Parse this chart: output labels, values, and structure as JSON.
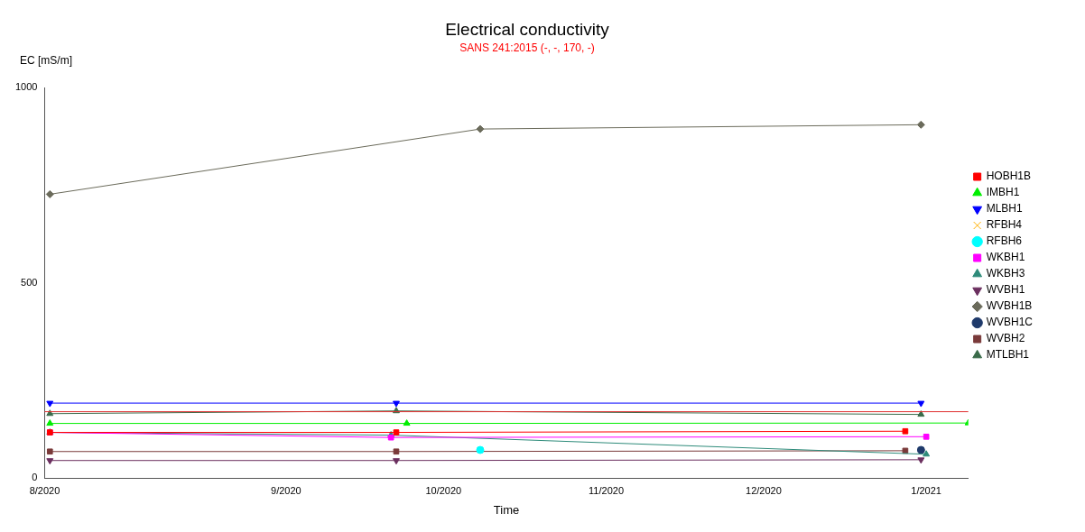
{
  "chart_data": {
    "type": "line",
    "title": "Electrical conductivity",
    "subtitle": "SANS 241:2015 (-, -, 170, -)",
    "xlabel": "Time",
    "ylabel": "EC [mS/m]",
    "xlim": [
      "2020-07-17",
      "2021-01-09"
    ],
    "xticks": [
      {
        "value": "2020-07-17",
        "label": "8/2020"
      },
      {
        "value": "2020-09-01",
        "label": "9/2020"
      },
      {
        "value": "2020-10-01",
        "label": "10/2020"
      },
      {
        "value": "2020-11-01",
        "label": "11/2020"
      },
      {
        "value": "2020-12-01",
        "label": "12/2020"
      },
      {
        "value": "2021-01-01",
        "label": "1/2021"
      }
    ],
    "ylim": [
      0,
      1000
    ],
    "yticks": [
      0,
      500,
      1000
    ],
    "grid": false,
    "legend": "right",
    "line_style": "solid",
    "ref_lines": [
      {
        "axis": "y",
        "value": 170,
        "color": "#e03030"
      }
    ],
    "series": [
      {
        "name": "HOBH1B",
        "color": "#ff0000",
        "marker": "square",
        "x": [
          "2020-07-18",
          "2020-09-22",
          "2020-12-28"
        ],
        "values": [
          117,
          117,
          120
        ]
      },
      {
        "name": "IMBH1",
        "color": "#00ee00",
        "marker": "triangle",
        "x": [
          "2020-07-18",
          "2020-09-24",
          "2021-01-09"
        ],
        "values": [
          140,
          140,
          141
        ]
      },
      {
        "name": "MLBH1",
        "color": "#0000ff",
        "marker": "triangle-down",
        "x": [
          "2020-07-18",
          "2020-09-22",
          "2020-12-31"
        ],
        "values": [
          192,
          192,
          192
        ]
      },
      {
        "name": "RFBH4",
        "color": "#ffb000",
        "marker": "cross"
      },
      {
        "name": "RFBH6",
        "color": "#00ffff",
        "marker": "circle",
        "x": [
          "2020-10-08"
        ],
        "values": [
          72
        ]
      },
      {
        "name": "WKBH1",
        "color": "#ff00ff",
        "marker": "square",
        "x": [
          "2020-07-18",
          "2020-09-21",
          "2021-01-01"
        ],
        "values": [
          117,
          104,
          106
        ]
      },
      {
        "name": "WKBH3",
        "color": "#2e8b7a",
        "marker": "triangle",
        "x": [
          "2020-07-18",
          "2020-09-21",
          "2021-01-01"
        ],
        "values": [
          117,
          110,
          61
        ]
      },
      {
        "name": "WVBH1",
        "color": "#6b2f5f",
        "marker": "triangle-down",
        "x": [
          "2020-07-18",
          "2020-09-22",
          "2020-12-31"
        ],
        "values": [
          45,
          45,
          47
        ]
      },
      {
        "name": "WVBH1B",
        "color": "#6b6b5b",
        "marker": "diamond",
        "x": [
          "2020-07-18",
          "2020-10-08",
          "2020-12-31"
        ],
        "values": [
          727,
          894,
          905
        ]
      },
      {
        "name": "WVBH1C",
        "color": "#1f3a6b",
        "marker": "circle",
        "x": [
          "2020-12-31"
        ],
        "values": [
          72
        ]
      },
      {
        "name": "WVBH2",
        "color": "#7a3a3a",
        "marker": "square",
        "x": [
          "2020-07-18",
          "2020-09-22",
          "2020-12-28"
        ],
        "values": [
          68,
          68,
          70
        ]
      },
      {
        "name": "MTLBH1",
        "color": "#3a6b4a",
        "marker": "triangle",
        "x": [
          "2020-07-18",
          "2020-09-22",
          "2020-12-31"
        ],
        "values": [
          165,
          172,
          163
        ]
      }
    ]
  }
}
